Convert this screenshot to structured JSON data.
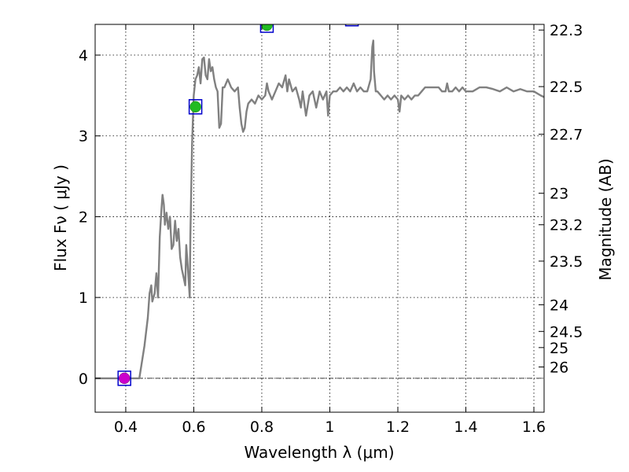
{
  "chart_data": {
    "type": "line",
    "xlabel": "Wavelength  λ (μm)",
    "ylabel": "Flux  Fν  ( μJy )",
    "y2label": "Magnitude (AB)",
    "xlim": [
      0.31,
      1.63
    ],
    "ylim": [
      -0.42,
      4.38
    ],
    "grid": true,
    "x_ticks": [
      0.4,
      0.6,
      0.8,
      1.0,
      1.2,
      1.4,
      1.6
    ],
    "x_tick_labels": [
      "0.4",
      "0.6",
      "0.8",
      "1",
      "1.2",
      "1.4",
      "1.6"
    ],
    "y_ticks": [
      0,
      1,
      2,
      3,
      4
    ],
    "y_tick_labels": [
      "0",
      "1",
      "2",
      "3",
      "4"
    ],
    "y2_ticks": [
      {
        "flux": 4.31,
        "label": "22.3"
      },
      {
        "flux": 3.61,
        "label": "22.5"
      },
      {
        "flux": 3.02,
        "label": "22.7"
      },
      {
        "flux": 2.29,
        "label": "23"
      },
      {
        "flux": 1.9,
        "label": "23.2"
      },
      {
        "flux": 1.45,
        "label": "23.5"
      },
      {
        "flux": 0.91,
        "label": "24"
      },
      {
        "flux": 0.58,
        "label": "24.5"
      },
      {
        "flux": 0.38,
        "label": "25"
      },
      {
        "flux": 0.14,
        "label": "26"
      }
    ],
    "zero_line": true,
    "colors": {
      "model": "#808080",
      "box": "#0000cc",
      "green_point": "#22bb22",
      "magenta_point": "#cc00cc"
    },
    "series": [
      {
        "type": "line",
        "points": [
          [
            0.31,
            0.0
          ],
          [
            0.43,
            0.0
          ],
          [
            0.44,
            0.0
          ],
          [
            0.455,
            0.4
          ],
          [
            0.465,
            0.75
          ],
          [
            0.47,
            1.05
          ],
          [
            0.475,
            1.15
          ],
          [
            0.478,
            0.95
          ],
          [
            0.485,
            1.05
          ],
          [
            0.49,
            1.3
          ],
          [
            0.495,
            1.0
          ],
          [
            0.5,
            1.75
          ],
          [
            0.505,
            2.1
          ],
          [
            0.508,
            2.27
          ],
          [
            0.512,
            2.15
          ],
          [
            0.515,
            1.9
          ],
          [
            0.52,
            2.05
          ],
          [
            0.525,
            1.85
          ],
          [
            0.53,
            2.0
          ],
          [
            0.535,
            1.6
          ],
          [
            0.54,
            1.65
          ],
          [
            0.545,
            1.95
          ],
          [
            0.55,
            1.7
          ],
          [
            0.555,
            1.85
          ],
          [
            0.56,
            1.5
          ],
          [
            0.565,
            1.35
          ],
          [
            0.57,
            1.25
          ],
          [
            0.575,
            1.15
          ],
          [
            0.578,
            1.65
          ],
          [
            0.582,
            1.4
          ],
          [
            0.585,
            1.2
          ],
          [
            0.588,
            1.0
          ],
          [
            0.59,
            1.75
          ],
          [
            0.595,
            2.9
          ],
          [
            0.6,
            3.5
          ],
          [
            0.605,
            3.7
          ],
          [
            0.61,
            3.75
          ],
          [
            0.615,
            3.85
          ],
          [
            0.62,
            3.65
          ],
          [
            0.625,
            3.95
          ],
          [
            0.63,
            3.97
          ],
          [
            0.635,
            3.75
          ],
          [
            0.64,
            3.7
          ],
          [
            0.645,
            3.95
          ],
          [
            0.65,
            3.8
          ],
          [
            0.655,
            3.85
          ],
          [
            0.66,
            3.7
          ],
          [
            0.665,
            3.6
          ],
          [
            0.67,
            3.55
          ],
          [
            0.675,
            3.1
          ],
          [
            0.68,
            3.15
          ],
          [
            0.685,
            3.6
          ],
          [
            0.69,
            3.6
          ],
          [
            0.695,
            3.65
          ],
          [
            0.7,
            3.7
          ],
          [
            0.71,
            3.6
          ],
          [
            0.72,
            3.55
          ],
          [
            0.73,
            3.6
          ],
          [
            0.735,
            3.35
          ],
          [
            0.74,
            3.15
          ],
          [
            0.745,
            3.05
          ],
          [
            0.75,
            3.1
          ],
          [
            0.755,
            3.3
          ],
          [
            0.76,
            3.4
          ],
          [
            0.77,
            3.45
          ],
          [
            0.78,
            3.4
          ],
          [
            0.79,
            3.5
          ],
          [
            0.8,
            3.45
          ],
          [
            0.81,
            3.5
          ],
          [
            0.815,
            3.65
          ],
          [
            0.82,
            3.55
          ],
          [
            0.83,
            3.45
          ],
          [
            0.84,
            3.55
          ],
          [
            0.85,
            3.65
          ],
          [
            0.86,
            3.6
          ],
          [
            0.87,
            3.75
          ],
          [
            0.875,
            3.55
          ],
          [
            0.88,
            3.7
          ],
          [
            0.89,
            3.55
          ],
          [
            0.9,
            3.6
          ],
          [
            0.91,
            3.45
          ],
          [
            0.915,
            3.35
          ],
          [
            0.92,
            3.55
          ],
          [
            0.93,
            3.25
          ],
          [
            0.94,
            3.5
          ],
          [
            0.95,
            3.55
          ],
          [
            0.96,
            3.35
          ],
          [
            0.97,
            3.55
          ],
          [
            0.98,
            3.45
          ],
          [
            0.99,
            3.55
          ],
          [
            0.995,
            3.25
          ],
          [
            1.0,
            3.5
          ],
          [
            1.01,
            3.55
          ],
          [
            1.02,
            3.55
          ],
          [
            1.03,
            3.6
          ],
          [
            1.04,
            3.55
          ],
          [
            1.05,
            3.6
          ],
          [
            1.06,
            3.55
          ],
          [
            1.07,
            3.65
          ],
          [
            1.08,
            3.55
          ],
          [
            1.09,
            3.6
          ],
          [
            1.1,
            3.55
          ],
          [
            1.11,
            3.55
          ],
          [
            1.12,
            3.7
          ],
          [
            1.125,
            4.1
          ],
          [
            1.128,
            4.18
          ],
          [
            1.13,
            3.8
          ],
          [
            1.135,
            3.55
          ],
          [
            1.14,
            3.55
          ],
          [
            1.15,
            3.5
          ],
          [
            1.16,
            3.45
          ],
          [
            1.17,
            3.5
          ],
          [
            1.18,
            3.45
          ],
          [
            1.19,
            3.5
          ],
          [
            1.2,
            3.45
          ],
          [
            1.205,
            3.3
          ],
          [
            1.21,
            3.5
          ],
          [
            1.22,
            3.45
          ],
          [
            1.23,
            3.5
          ],
          [
            1.24,
            3.45
          ],
          [
            1.25,
            3.5
          ],
          [
            1.26,
            3.5
          ],
          [
            1.27,
            3.55
          ],
          [
            1.28,
            3.6
          ],
          [
            1.3,
            3.6
          ],
          [
            1.32,
            3.6
          ],
          [
            1.33,
            3.55
          ],
          [
            1.34,
            3.55
          ],
          [
            1.345,
            3.65
          ],
          [
            1.35,
            3.55
          ],
          [
            1.36,
            3.55
          ],
          [
            1.37,
            3.6
          ],
          [
            1.38,
            3.55
          ],
          [
            1.39,
            3.6
          ],
          [
            1.4,
            3.55
          ],
          [
            1.42,
            3.55
          ],
          [
            1.44,
            3.6
          ],
          [
            1.46,
            3.6
          ],
          [
            1.48,
            3.58
          ],
          [
            1.5,
            3.55
          ],
          [
            1.52,
            3.6
          ],
          [
            1.54,
            3.55
          ],
          [
            1.56,
            3.58
          ],
          [
            1.58,
            3.55
          ],
          [
            1.6,
            3.55
          ],
          [
            1.62,
            3.5
          ],
          [
            1.63,
            3.48
          ]
        ]
      },
      {
        "type": "scatter",
        "points": [
          {
            "x": 0.396,
            "y": 0.0,
            "marker": "box",
            "fill": "magenta"
          },
          {
            "x": 0.605,
            "y": 3.36,
            "marker": "box",
            "fill": "green"
          },
          {
            "x": 0.815,
            "y": 4.37,
            "marker": "box",
            "fill": "green"
          },
          {
            "x": 1.065,
            "y": 4.45,
            "marker": "box",
            "fill": "none"
          }
        ]
      }
    ]
  }
}
